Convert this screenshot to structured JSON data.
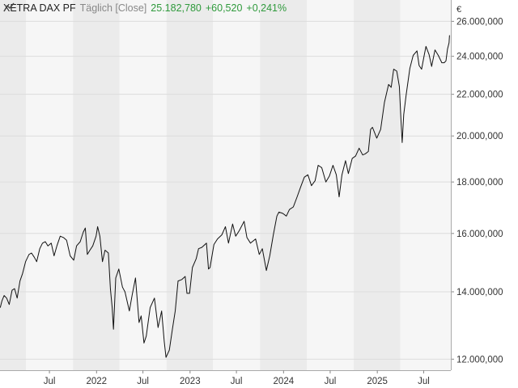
{
  "instrument": "XETRA DAX PF",
  "interval": "Täglich [Close]",
  "last_value": "25.182,780",
  "change_abs": "+60,520",
  "change_pct": "+0,241%",
  "currency": "€",
  "icons": {
    "series": "line-series-icon"
  },
  "colors": {
    "line": "#111111",
    "band_a": "#ebebeb",
    "band_b": "#f6f6f6",
    "positive": "#2f9a3c"
  },
  "chart_data": {
    "type": "line",
    "y_scale": "log",
    "ylim": [
      11700,
      27300
    ],
    "xlim": [
      "2020-12-20",
      "2025-10-15"
    ],
    "y_ticks": [
      {
        "value": 12000,
        "label": "12.000,000"
      },
      {
        "value": 14000,
        "label": "14.000,000"
      },
      {
        "value": 16000,
        "label": "16.000,000"
      },
      {
        "value": 18000,
        "label": "18.000,000"
      },
      {
        "value": 20000,
        "label": "20.000,000"
      },
      {
        "value": 22000,
        "label": "22.000,000"
      },
      {
        "value": 24000,
        "label": "24.000,000"
      },
      {
        "value": 26000,
        "label": "26.000,000"
      }
    ],
    "x_ticks": [
      {
        "date": "2021-07-01",
        "label": "Jul"
      },
      {
        "date": "2022-01-01",
        "label": "2022"
      },
      {
        "date": "2022-07-01",
        "label": "Jul"
      },
      {
        "date": "2023-01-01",
        "label": "2023"
      },
      {
        "date": "2023-07-01",
        "label": "Jul"
      },
      {
        "date": "2024-01-01",
        "label": "2024"
      },
      {
        "date": "2024-07-01",
        "label": "Jul"
      },
      {
        "date": "2025-01-01",
        "label": "2025"
      },
      {
        "date": "2025-07-01",
        "label": "Jul"
      }
    ],
    "bands": [
      {
        "start": "2020-12-20",
        "end": "2021-04-01",
        "shade": "band_a"
      },
      {
        "start": "2021-04-01",
        "end": "2021-10-01",
        "shade": "band_b"
      },
      {
        "start": "2021-10-01",
        "end": "2022-04-01",
        "shade": "band_a"
      },
      {
        "start": "2022-04-01",
        "end": "2022-10-01",
        "shade": "band_b"
      },
      {
        "start": "2022-10-01",
        "end": "2023-04-01",
        "shade": "band_a"
      },
      {
        "start": "2023-04-01",
        "end": "2023-10-01",
        "shade": "band_b"
      },
      {
        "start": "2023-10-01",
        "end": "2024-04-01",
        "shade": "band_a"
      },
      {
        "start": "2024-04-01",
        "end": "2024-10-01",
        "shade": "band_b"
      },
      {
        "start": "2024-10-01",
        "end": "2025-04-01",
        "shade": "band_a"
      },
      {
        "start": "2025-04-01",
        "end": "2025-10-15",
        "shade": "band_b"
      }
    ],
    "series": [
      {
        "points": [
          [
            "2020-12-21",
            13500
          ],
          [
            "2020-12-28",
            13720
          ],
          [
            "2021-01-05",
            13880
          ],
          [
            "2021-01-15",
            13800
          ],
          [
            "2021-01-25",
            13600
          ],
          [
            "2021-02-05",
            14050
          ],
          [
            "2021-02-15",
            14100
          ],
          [
            "2021-02-25",
            13800
          ],
          [
            "2021-03-08",
            14350
          ],
          [
            "2021-03-18",
            14600
          ],
          [
            "2021-03-30",
            15000
          ],
          [
            "2021-04-12",
            15250
          ],
          [
            "2021-04-22",
            15300
          ],
          [
            "2021-05-03",
            15150
          ],
          [
            "2021-05-12",
            15000
          ],
          [
            "2021-05-24",
            15450
          ],
          [
            "2021-06-04",
            15650
          ],
          [
            "2021-06-15",
            15700
          ],
          [
            "2021-06-25",
            15550
          ],
          [
            "2021-07-08",
            15650
          ],
          [
            "2021-07-19",
            15200
          ],
          [
            "2021-07-30",
            15550
          ],
          [
            "2021-08-12",
            15900
          ],
          [
            "2021-08-25",
            15850
          ],
          [
            "2021-09-06",
            15750
          ],
          [
            "2021-09-20",
            15200
          ],
          [
            "2021-10-04",
            15050
          ],
          [
            "2021-10-15",
            15550
          ],
          [
            "2021-10-29",
            15700
          ],
          [
            "2021-11-10",
            16050
          ],
          [
            "2021-11-18",
            16200
          ],
          [
            "2021-11-26",
            15250
          ],
          [
            "2021-12-06",
            15400
          ],
          [
            "2021-12-17",
            15550
          ],
          [
            "2021-12-30",
            15900
          ],
          [
            "2022-01-05",
            16250
          ],
          [
            "2022-01-14",
            15900
          ],
          [
            "2022-01-24",
            15000
          ],
          [
            "2022-02-03",
            15400
          ],
          [
            "2022-02-16",
            15300
          ],
          [
            "2022-02-24",
            14100
          ],
          [
            "2022-03-03",
            13500
          ],
          [
            "2022-03-08",
            12850
          ],
          [
            "2022-03-17",
            14450
          ],
          [
            "2022-03-29",
            14750
          ],
          [
            "2022-04-12",
            14150
          ],
          [
            "2022-04-22",
            14000
          ],
          [
            "2022-05-09",
            13400
          ],
          [
            "2022-05-20",
            13900
          ],
          [
            "2022-06-02",
            14450
          ],
          [
            "2022-06-16",
            13050
          ],
          [
            "2022-06-24",
            13250
          ],
          [
            "2022-07-05",
            12450
          ],
          [
            "2022-07-14",
            12650
          ],
          [
            "2022-07-29",
            13500
          ],
          [
            "2022-08-15",
            13800
          ],
          [
            "2022-08-29",
            12900
          ],
          [
            "2022-09-12",
            13400
          ],
          [
            "2022-09-22",
            12500
          ],
          [
            "2022-09-29",
            12050
          ],
          [
            "2022-10-12",
            12250
          ],
          [
            "2022-10-24",
            12850
          ],
          [
            "2022-11-04",
            13400
          ],
          [
            "2022-11-15",
            14350
          ],
          [
            "2022-11-30",
            14400
          ],
          [
            "2022-12-13",
            14500
          ],
          [
            "2022-12-20",
            13950
          ],
          [
            "2022-12-30",
            13950
          ],
          [
            "2023-01-10",
            14800
          ],
          [
            "2023-01-25",
            15100
          ],
          [
            "2023-02-03",
            15450
          ],
          [
            "2023-02-16",
            15500
          ],
          [
            "2023-03-06",
            15650
          ],
          [
            "2023-03-14",
            14750
          ],
          [
            "2023-03-20",
            14800
          ],
          [
            "2023-04-04",
            15600
          ],
          [
            "2023-04-18",
            15800
          ],
          [
            "2023-05-05",
            15950
          ],
          [
            "2023-05-19",
            16250
          ],
          [
            "2023-05-31",
            15650
          ],
          [
            "2023-06-16",
            16350
          ],
          [
            "2023-06-28",
            15900
          ],
          [
            "2023-07-12",
            16100
          ],
          [
            "2023-07-31",
            16450
          ],
          [
            "2023-08-11",
            15850
          ],
          [
            "2023-08-25",
            15650
          ],
          [
            "2023-09-14",
            15800
          ],
          [
            "2023-09-28",
            15250
          ],
          [
            "2023-10-10",
            15450
          ],
          [
            "2023-10-26",
            14700
          ],
          [
            "2023-11-08",
            15200
          ],
          [
            "2023-11-22",
            15950
          ],
          [
            "2023-12-06",
            16650
          ],
          [
            "2023-12-14",
            16800
          ],
          [
            "2023-12-29",
            16750
          ],
          [
            "2024-01-12",
            16650
          ],
          [
            "2024-01-24",
            16900
          ],
          [
            "2024-02-08",
            17000
          ],
          [
            "2024-02-23",
            17400
          ],
          [
            "2024-03-08",
            17800
          ],
          [
            "2024-03-22",
            18200
          ],
          [
            "2024-04-05",
            18300
          ],
          [
            "2024-04-19",
            17850
          ],
          [
            "2024-05-03",
            18050
          ],
          [
            "2024-05-15",
            18700
          ],
          [
            "2024-05-29",
            18600
          ],
          [
            "2024-06-14",
            18000
          ],
          [
            "2024-06-28",
            18250
          ],
          [
            "2024-07-12",
            18700
          ],
          [
            "2024-07-25",
            18300
          ],
          [
            "2024-08-05",
            17400
          ],
          [
            "2024-08-16",
            18300
          ],
          [
            "2024-08-30",
            18900
          ],
          [
            "2024-09-10",
            18350
          ],
          [
            "2024-09-25",
            19000
          ],
          [
            "2024-10-08",
            19100
          ],
          [
            "2024-10-22",
            19450
          ],
          [
            "2024-11-05",
            19150
          ],
          [
            "2024-11-15",
            19200
          ],
          [
            "2024-11-27",
            19300
          ],
          [
            "2024-12-06",
            20300
          ],
          [
            "2024-12-13",
            20400
          ],
          [
            "2024-12-30",
            19900
          ],
          [
            "2025-01-14",
            20300
          ],
          [
            "2025-01-29",
            21600
          ],
          [
            "2025-02-14",
            22500
          ],
          [
            "2025-02-24",
            22350
          ],
          [
            "2025-03-06",
            23300
          ],
          [
            "2025-03-18",
            23200
          ],
          [
            "2025-03-28",
            22400
          ],
          [
            "2025-04-04",
            20600
          ],
          [
            "2025-04-08",
            19700
          ],
          [
            "2025-04-14",
            21000
          ],
          [
            "2025-04-24",
            22000
          ],
          [
            "2025-05-08",
            23350
          ],
          [
            "2025-05-21",
            24050
          ],
          [
            "2025-06-05",
            24300
          ],
          [
            "2025-06-13",
            23500
          ],
          [
            "2025-06-23",
            23300
          ],
          [
            "2025-07-03",
            24050
          ],
          [
            "2025-07-10",
            24550
          ],
          [
            "2025-07-22",
            24100
          ],
          [
            "2025-08-01",
            23450
          ],
          [
            "2025-08-14",
            24350
          ],
          [
            "2025-08-27",
            24050
          ],
          [
            "2025-09-10",
            23650
          ],
          [
            "2025-09-19",
            23650
          ],
          [
            "2025-09-26",
            23750
          ],
          [
            "2025-10-02",
            24400
          ],
          [
            "2025-10-08",
            24750
          ],
          [
            "2025-10-10",
            25182.78
          ]
        ]
      }
    ]
  }
}
